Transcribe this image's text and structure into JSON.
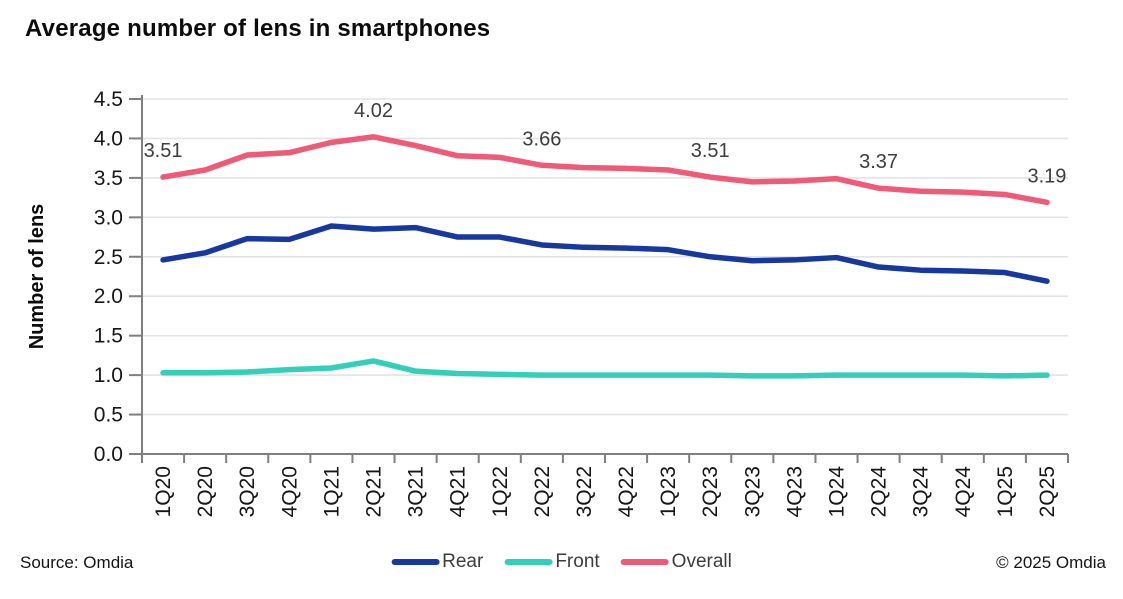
{
  "footer": {
    "source": "Source: Omdia",
    "copyright": "© 2025 Omdia"
  },
  "chart_data": {
    "type": "line",
    "title": "Average number of lens in smartphones",
    "xlabel": "",
    "ylabel": "Number of lens",
    "ylim": [
      0,
      4.5
    ],
    "ytick_step": 0.5,
    "grid": true,
    "legend_position": "bottom",
    "categories": [
      "1Q20",
      "2Q20",
      "3Q20",
      "4Q20",
      "1Q21",
      "2Q21",
      "3Q21",
      "4Q21",
      "1Q22",
      "2Q22",
      "3Q22",
      "4Q22",
      "1Q23",
      "2Q23",
      "3Q23",
      "4Q23",
      "1Q24",
      "2Q24",
      "3Q24",
      "4Q24",
      "1Q25",
      "2Q25"
    ],
    "series": [
      {
        "name": "Rear",
        "color": "#17389E",
        "values": [
          2.46,
          2.55,
          2.73,
          2.72,
          2.89,
          2.85,
          2.87,
          2.75,
          2.75,
          2.65,
          2.62,
          2.61,
          2.59,
          2.5,
          2.45,
          2.46,
          2.49,
          2.37,
          2.33,
          2.32,
          2.3,
          2.19
        ]
      },
      {
        "name": "Front",
        "color": "#33CFBB",
        "values": [
          1.03,
          1.03,
          1.04,
          1.07,
          1.09,
          1.18,
          1.05,
          1.02,
          1.01,
          1.0,
          1.0,
          1.0,
          1.0,
          1.0,
          0.99,
          0.99,
          1.0,
          1.0,
          1.0,
          1.0,
          0.99,
          1.0
        ]
      },
      {
        "name": "Overall",
        "color": "#EF5A77",
        "values": [
          3.51,
          3.6,
          3.79,
          3.82,
          3.95,
          4.02,
          3.91,
          3.78,
          3.76,
          3.66,
          3.63,
          3.62,
          3.6,
          3.51,
          3.45,
          3.46,
          3.49,
          3.37,
          3.33,
          3.32,
          3.29,
          3.19
        ]
      }
    ],
    "annotations": [
      {
        "category": "1Q20",
        "value": 3.51,
        "text": "3.51"
      },
      {
        "category": "2Q21",
        "value": 4.02,
        "text": "4.02"
      },
      {
        "category": "2Q22",
        "value": 3.66,
        "text": "3.66"
      },
      {
        "category": "2Q23",
        "value": 3.51,
        "text": "3.51"
      },
      {
        "category": "2Q24",
        "value": 3.37,
        "text": "3.37"
      },
      {
        "category": "2Q25",
        "value": 3.19,
        "text": "3.19"
      }
    ],
    "colors": {
      "gridline": "#E3E3E3",
      "axis": "#7F7F7F",
      "tick_label": "#161616",
      "annotation": "#3d3d3d"
    }
  }
}
